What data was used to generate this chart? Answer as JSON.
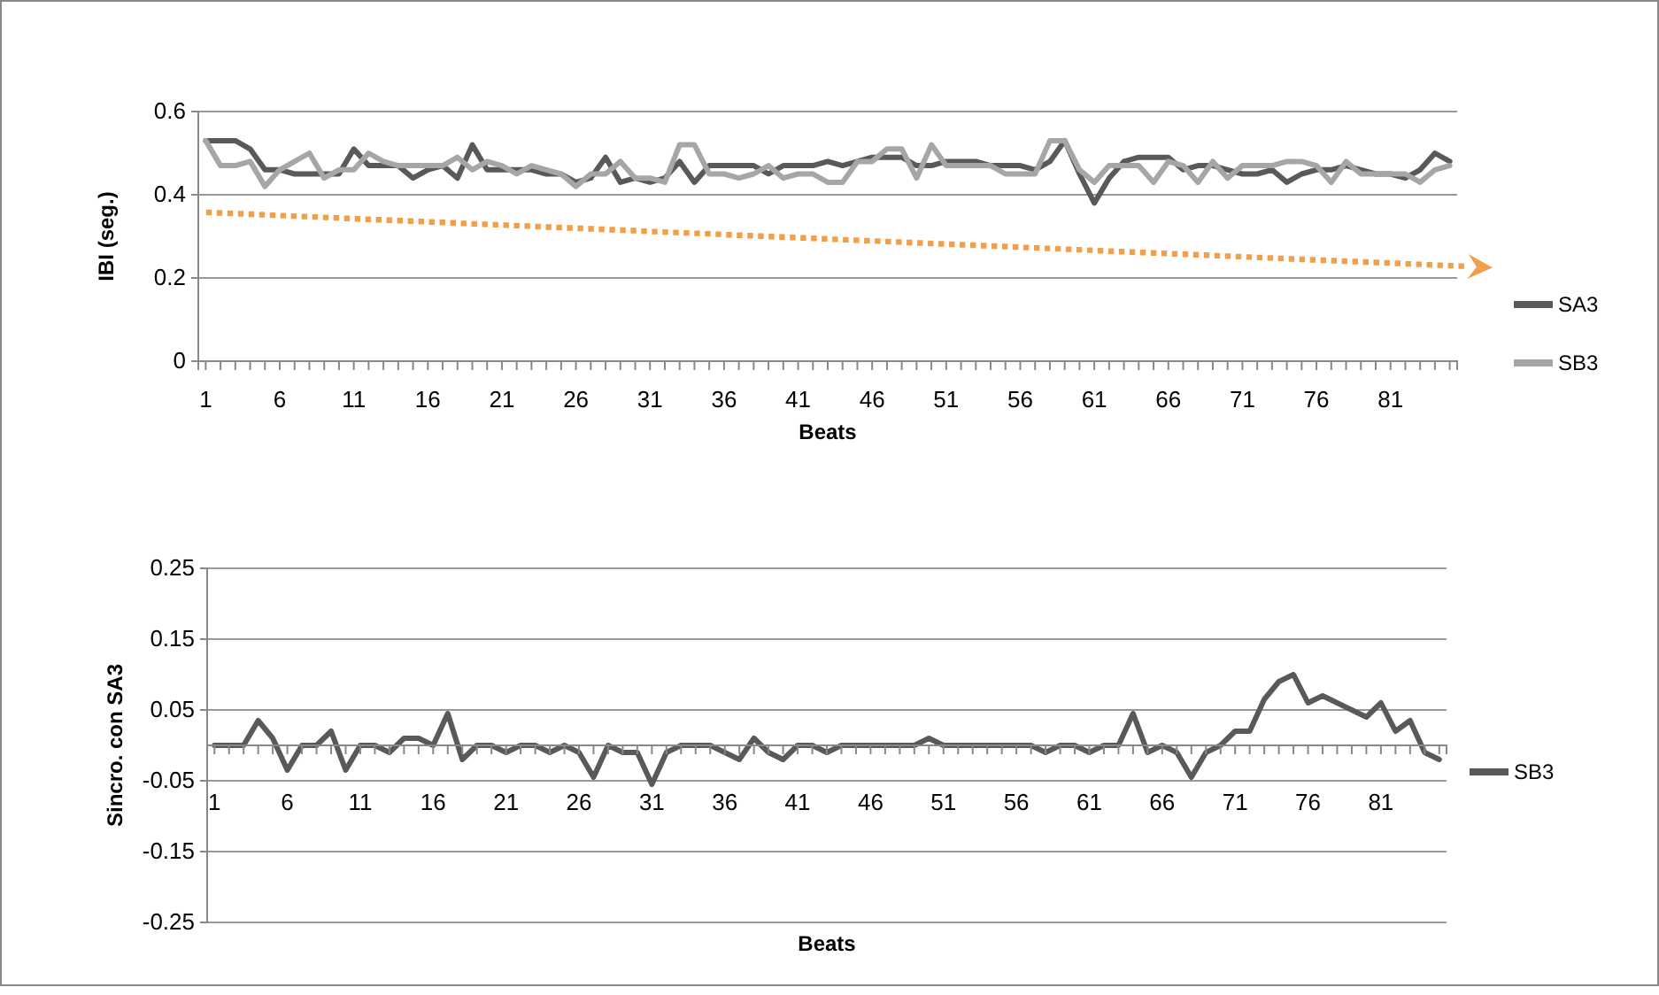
{
  "chart_data": [
    {
      "type": "line",
      "xlabel": "Beats",
      "ylabel": "IBI (seg.)",
      "x": [
        1,
        2,
        3,
        4,
        5,
        6,
        7,
        8,
        9,
        10,
        11,
        12,
        13,
        14,
        15,
        16,
        17,
        18,
        19,
        20,
        21,
        22,
        23,
        24,
        25,
        26,
        27,
        28,
        29,
        30,
        31,
        32,
        33,
        34,
        35,
        36,
        37,
        38,
        39,
        40,
        41,
        42,
        43,
        44,
        45,
        46,
        47,
        48,
        49,
        50,
        51,
        52,
        53,
        54,
        55,
        56,
        57,
        58,
        59,
        60,
        61,
        62,
        63,
        64,
        65,
        66,
        67,
        68,
        69,
        70,
        71,
        72,
        73,
        74,
        75,
        76,
        77,
        78,
        79,
        80,
        81,
        82,
        83,
        84,
        85
      ],
      "xlim": [
        0.5,
        85.5
      ],
      "xticks": [
        1,
        {
          "value": 2,
          "label": null
        },
        {
          "value": 3,
          "label": null
        },
        {
          "value": 4,
          "label": null
        },
        {
          "value": 5,
          "label": null
        },
        6,
        {
          "value": 7,
          "label": null
        },
        {
          "value": 8,
          "label": null
        },
        {
          "value": 9,
          "label": null
        },
        {
          "value": 10,
          "label": null
        },
        11,
        {
          "value": 12,
          "label": null
        },
        {
          "value": 13,
          "label": null
        },
        {
          "value": 14,
          "label": null
        },
        {
          "value": 15,
          "label": null
        },
        16,
        {
          "value": 17,
          "label": null
        },
        {
          "value": 18,
          "label": null
        },
        {
          "value": 19,
          "label": null
        },
        {
          "value": 20,
          "label": null
        },
        21,
        {
          "value": 22,
          "label": null
        },
        {
          "value": 23,
          "label": null
        },
        {
          "value": 24,
          "label": null
        },
        {
          "value": 25,
          "label": null
        },
        26,
        {
          "value": 27,
          "label": null
        },
        {
          "value": 28,
          "label": null
        },
        {
          "value": 29,
          "label": null
        },
        {
          "value": 30,
          "label": null
        },
        31,
        {
          "value": 32,
          "label": null
        },
        {
          "value": 33,
          "label": null
        },
        {
          "value": 34,
          "label": null
        },
        {
          "value": 35,
          "label": null
        },
        36,
        {
          "value": 37,
          "label": null
        },
        {
          "value": 38,
          "label": null
        },
        {
          "value": 39,
          "label": null
        },
        {
          "value": 40,
          "label": null
        },
        41,
        {
          "value": 42,
          "label": null
        },
        {
          "value": 43,
          "label": null
        },
        {
          "value": 44,
          "label": null
        },
        {
          "value": 45,
          "label": null
        },
        46,
        {
          "value": 47,
          "label": null
        },
        {
          "value": 48,
          "label": null
        },
        {
          "value": 49,
          "label": null
        },
        {
          "value": 50,
          "label": null
        },
        51,
        {
          "value": 52,
          "label": null
        },
        {
          "value": 53,
          "label": null
        },
        {
          "value": 54,
          "label": null
        },
        {
          "value": 55,
          "label": null
        },
        56,
        {
          "value": 57,
          "label": null
        },
        {
          "value": 58,
          "label": null
        },
        {
          "value": 59,
          "label": null
        },
        {
          "value": 60,
          "label": null
        },
        61,
        {
          "value": 62,
          "label": null
        },
        {
          "value": 63,
          "label": null
        },
        {
          "value": 64,
          "label": null
        },
        {
          "value": 65,
          "label": null
        },
        66,
        {
          "value": 67,
          "label": null
        },
        {
          "value": 68,
          "label": null
        },
        {
          "value": 69,
          "label": null
        },
        {
          "value": 70,
          "label": null
        },
        71,
        {
          "value": 72,
          "label": null
        },
        {
          "value": 73,
          "label": null
        },
        {
          "value": 74,
          "label": null
        },
        {
          "value": 75,
          "label": null
        },
        76,
        {
          "value": 77,
          "label": null
        },
        {
          "value": 78,
          "label": null
        },
        {
          "value": 79,
          "label": null
        },
        {
          "value": 80,
          "label": null
        },
        81,
        {
          "value": 82,
          "label": null
        },
        {
          "value": 83,
          "label": null
        },
        {
          "value": 84,
          "label": null
        },
        {
          "value": 85,
          "label": null
        }
      ],
      "ylim": [
        0,
        0.6
      ],
      "yticks": [
        0,
        0.2,
        0.4,
        0.6
      ],
      "grid": "y",
      "legend": "right",
      "series": [
        {
          "name": "SA3",
          "color": "#595959",
          "values": [
            0.53,
            0.53,
            0.53,
            0.51,
            0.46,
            0.46,
            0.45,
            0.45,
            0.45,
            0.45,
            0.51,
            0.47,
            0.47,
            0.47,
            0.44,
            0.46,
            0.47,
            0.44,
            0.52,
            0.46,
            0.46,
            0.46,
            0.46,
            0.45,
            0.45,
            0.43,
            0.44,
            0.49,
            0.43,
            0.44,
            0.43,
            0.44,
            0.48,
            0.43,
            0.47,
            0.47,
            0.47,
            0.47,
            0.45,
            0.47,
            0.47,
            0.47,
            0.48,
            0.47,
            0.48,
            0.49,
            0.49,
            0.49,
            0.47,
            0.47,
            0.48,
            0.48,
            0.48,
            0.47,
            0.47,
            0.47,
            0.46,
            0.48,
            0.53,
            0.45,
            0.38,
            0.44,
            0.48,
            0.49,
            0.49,
            0.49,
            0.46,
            0.47,
            0.47,
            0.46,
            0.45,
            0.45,
            0.46,
            0.43,
            0.45,
            0.46,
            0.46,
            0.47,
            0.46,
            0.45,
            0.45,
            0.44,
            0.46,
            0.5,
            0.48
          ]
        },
        {
          "name": "SB3",
          "color": "#a6a6a6",
          "values": [
            0.53,
            0.47,
            0.47,
            0.48,
            0.42,
            0.46,
            0.48,
            0.5,
            0.44,
            0.46,
            0.46,
            0.5,
            0.48,
            0.47,
            0.47,
            0.47,
            0.47,
            0.49,
            0.46,
            0.48,
            0.47,
            0.45,
            0.47,
            0.46,
            0.45,
            0.42,
            0.45,
            0.45,
            0.48,
            0.44,
            0.44,
            0.43,
            0.52,
            0.52,
            0.45,
            0.45,
            0.44,
            0.45,
            0.47,
            0.44,
            0.45,
            0.45,
            0.43,
            0.43,
            0.48,
            0.48,
            0.51,
            0.51,
            0.44,
            0.52,
            0.47,
            0.47,
            0.47,
            0.47,
            0.45,
            0.45,
            0.45,
            0.53,
            0.53,
            0.46,
            0.43,
            0.47,
            0.47,
            0.47,
            0.43,
            0.48,
            0.47,
            0.43,
            0.48,
            0.44,
            0.47,
            0.47,
            0.47,
            0.48,
            0.48,
            0.47,
            0.43,
            0.48,
            0.45,
            0.45,
            0.45,
            0.45,
            0.43,
            0.46,
            0.47
          ]
        }
      ]
    },
    {
      "type": "line",
      "xlabel": "Beats",
      "ylabel": "Sincro. con SA3",
      "x": [
        1,
        2,
        3,
        4,
        5,
        6,
        7,
        8,
        9,
        10,
        11,
        12,
        13,
        14,
        15,
        16,
        17,
        18,
        19,
        20,
        21,
        22,
        23,
        24,
        25,
        26,
        27,
        28,
        29,
        30,
        31,
        32,
        33,
        34,
        35,
        36,
        37,
        38,
        39,
        40,
        41,
        42,
        43,
        44,
        45,
        46,
        47,
        48,
        49,
        50,
        51,
        52,
        53,
        54,
        55,
        56,
        57,
        58,
        59,
        60,
        61,
        62,
        63,
        64,
        65,
        66,
        67,
        68,
        69,
        70,
        71,
        72,
        73,
        74,
        75,
        76,
        77,
        78,
        79,
        80,
        81,
        82,
        83,
        84,
        85
      ],
      "xlim": [
        0.5,
        85.5
      ],
      "xticks": [
        1,
        {
          "value": 2,
          "label": null
        },
        {
          "value": 3,
          "label": null
        },
        {
          "value": 4,
          "label": null
        },
        {
          "value": 5,
          "label": null
        },
        6,
        {
          "value": 7,
          "label": null
        },
        {
          "value": 8,
          "label": null
        },
        {
          "value": 9,
          "label": null
        },
        {
          "value": 10,
          "label": null
        },
        11,
        {
          "value": 12,
          "label": null
        },
        {
          "value": 13,
          "label": null
        },
        {
          "value": 14,
          "label": null
        },
        {
          "value": 15,
          "label": null
        },
        16,
        {
          "value": 17,
          "label": null
        },
        {
          "value": 18,
          "label": null
        },
        {
          "value": 19,
          "label": null
        },
        {
          "value": 20,
          "label": null
        },
        21,
        {
          "value": 22,
          "label": null
        },
        {
          "value": 23,
          "label": null
        },
        {
          "value": 24,
          "label": null
        },
        {
          "value": 25,
          "label": null
        },
        26,
        {
          "value": 27,
          "label": null
        },
        {
          "value": 28,
          "label": null
        },
        {
          "value": 29,
          "label": null
        },
        {
          "value": 30,
          "label": null
        },
        31,
        {
          "value": 32,
          "label": null
        },
        {
          "value": 33,
          "label": null
        },
        {
          "value": 34,
          "label": null
        },
        {
          "value": 35,
          "label": null
        },
        36,
        {
          "value": 37,
          "label": null
        },
        {
          "value": 38,
          "label": null
        },
        {
          "value": 39,
          "label": null
        },
        {
          "value": 40,
          "label": null
        },
        41,
        {
          "value": 42,
          "label": null
        },
        {
          "value": 43,
          "label": null
        },
        {
          "value": 44,
          "label": null
        },
        {
          "value": 45,
          "label": null
        },
        46,
        {
          "value": 47,
          "label": null
        },
        {
          "value": 48,
          "label": null
        },
        {
          "value": 49,
          "label": null
        },
        {
          "value": 50,
          "label": null
        },
        51,
        {
          "value": 52,
          "label": null
        },
        {
          "value": 53,
          "label": null
        },
        {
          "value": 54,
          "label": null
        },
        {
          "value": 55,
          "label": null
        },
        56,
        {
          "value": 57,
          "label": null
        },
        {
          "value": 58,
          "label": null
        },
        {
          "value": 59,
          "label": null
        },
        {
          "value": 60,
          "label": null
        },
        61,
        {
          "value": 62,
          "label": null
        },
        {
          "value": 63,
          "label": null
        },
        {
          "value": 64,
          "label": null
        },
        {
          "value": 65,
          "label": null
        },
        66,
        {
          "value": 67,
          "label": null
        },
        {
          "value": 68,
          "label": null
        },
        {
          "value": 69,
          "label": null
        },
        {
          "value": 70,
          "label": null
        },
        71,
        {
          "value": 72,
          "label": null
        },
        {
          "value": 73,
          "label": null
        },
        {
          "value": 74,
          "label": null
        },
        {
          "value": 75,
          "label": null
        },
        76,
        {
          "value": 77,
          "label": null
        },
        {
          "value": 78,
          "label": null
        },
        {
          "value": 79,
          "label": null
        },
        {
          "value": 80,
          "label": null
        },
        81,
        {
          "value": 82,
          "label": null
        },
        {
          "value": 83,
          "label": null
        },
        {
          "value": 84,
          "label": null
        },
        {
          "value": 85,
          "label": null
        }
      ],
      "ylim": [
        -0.25,
        0.25
      ],
      "yticks": [
        -0.25,
        -0.15,
        -0.05,
        0.05,
        0.15,
        0.25
      ],
      "grid": "y",
      "legend": "right",
      "series": [
        {
          "name": "SB3",
          "color": "#595959",
          "values": [
            0,
            0,
            0,
            0.035,
            0.01,
            -0.035,
            0,
            0,
            0.02,
            -0.035,
            0,
            0,
            -0.01,
            0.01,
            0.01,
            0,
            0.045,
            -0.02,
            0,
            0,
            -0.01,
            0,
            0,
            -0.01,
            0,
            -0.01,
            -0.045,
            0,
            -0.01,
            -0.01,
            -0.055,
            -0.01,
            0,
            0,
            0,
            -0.01,
            -0.02,
            0.01,
            -0.01,
            -0.02,
            0,
            0,
            -0.01,
            0,
            0,
            0,
            0,
            0,
            0,
            0.01,
            0,
            0,
            0,
            0,
            0,
            0,
            0,
            -0.01,
            0,
            0,
            -0.01,
            0,
            0,
            0.045,
            -0.01,
            0,
            -0.01,
            -0.045,
            -0.01,
            0,
            0.02,
            0.02,
            0.065,
            0.09,
            0.1,
            0.06,
            0.07,
            0.06,
            0.05,
            0.04,
            0.06,
            0.02,
            0.035,
            -0.01,
            -0.02
          ]
        }
      ]
    }
  ]
}
